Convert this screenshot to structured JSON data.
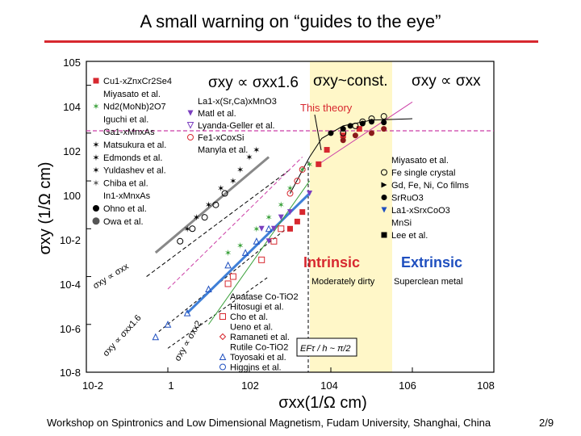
{
  "slide": {
    "title": "A small warning on “guides to the eye”",
    "footer": "Workshop on Spintronics and Low Dimensional Magnetism, Fudam University, Shanghai, China",
    "page": "2/9"
  },
  "chart_data": {
    "type": "scatter",
    "log_x": true,
    "log_y": true,
    "xlim": [
      0.01,
      100000000
    ],
    "ylim": [
      1e-08,
      100000
    ],
    "x_ticks": [
      "10-2",
      "1",
      "102",
      "104",
      "106",
      "108"
    ],
    "y_ticks": [
      "10-8",
      "10-6",
      "10-4",
      "10-2",
      "100",
      "102",
      "104",
      "105"
    ],
    "xlabel": "σxx(1/Ω cm)",
    "ylabel": "σxy (1/Ω cm)",
    "regimes": {
      "left_header": "σxy ∝ σxx1.6",
      "mid_header": "σxy~const.",
      "right_header": "σxy ∝ σxx",
      "intrinsic": "Intrinsic",
      "extrinsic": "Extrinsic",
      "moderately_dirty": "Moderately dirty",
      "superclean": "Superclean metal",
      "this_theory": "This theory",
      "formula": "EFτ / h ~ π/2",
      "left_line_1": "σxy ∝ σxx",
      "left_line_2": "σxy ∝ σxx1.6",
      "left_line_3": "σxy ∝ σxx2"
    },
    "legend_left": [
      {
        "label": "Cu1-xZnxCr2Se4",
        "color": "#d7282f",
        "marker": "square"
      },
      {
        "label": "Miyasato et al.",
        "color": "#000000",
        "marker": "none"
      },
      {
        "label": "Nd2(MoNb)2O7",
        "color": "#39a039",
        "marker": "star"
      },
      {
        "label": "Iguchi et al.",
        "color": "#000000",
        "marker": "none"
      },
      {
        "label": "Ga1-xMnxAs",
        "color": "#000000",
        "marker": "none"
      },
      {
        "label": "Matsukura et al.",
        "color": "#000000",
        "marker": "star"
      },
      {
        "label": "Edmonds et al.",
        "color": "#000000",
        "marker": "star"
      },
      {
        "label": "Yuldashev et al.",
        "color": "#000000",
        "marker": "star"
      },
      {
        "label": "Chiba et al.",
        "color": "#555555",
        "marker": "star"
      },
      {
        "label": "In1-xMnxAs",
        "color": "#000000",
        "marker": "none"
      },
      {
        "label": "Ohno et al.",
        "color": "#000000",
        "marker": "circle"
      },
      {
        "label": "Owa et al.",
        "color": "#555555",
        "marker": "hexagon"
      }
    ],
    "legend_mid": [
      {
        "label": "La1-x(Sr,Ca)xMnO3",
        "color": "#7b3fbf",
        "marker": "none"
      },
      {
        "label": "Matl et al.",
        "color": "#7b3fbf",
        "marker": "triangle-down"
      },
      {
        "label": "Lyanda-Geller et al.",
        "color": "#7b3fbf",
        "marker": "triangle-down-open"
      },
      {
        "label": "Fe1-xCoxSi",
        "color": "#d7282f",
        "marker": "circle-open"
      },
      {
        "label": "Manyla et al.",
        "color": "#000000",
        "marker": "none"
      }
    ],
    "legend_right": [
      {
        "label": "Miyasato et al.",
        "color": "#000000",
        "marker": "none"
      },
      {
        "label": "Fe single crystal",
        "color": "#000000",
        "marker": "circle-open"
      },
      {
        "label": "Gd, Fe, Ni, Co films",
        "color": "#000000",
        "marker": "triangle-right"
      },
      {
        "label": "SrRuO3",
        "color": "#000000",
        "marker": "dot"
      },
      {
        "label": "La1-xSrxCoO3",
        "color": "#1f4fbf",
        "marker": "triangle-down"
      },
      {
        "label": "MnSi",
        "color": "#000000",
        "marker": "none"
      },
      {
        "label": "Lee et al.",
        "color": "#000000",
        "marker": "square"
      }
    ],
    "legend_bottom": [
      {
        "label": "Anatase Co-TiO2",
        "color": "#000000",
        "marker": "none"
      },
      {
        "label": "Hitosugi et al.",
        "color": "#000000",
        "marker": "none"
      },
      {
        "label": "Cho et al.",
        "color": "#d7282f",
        "marker": "square-open"
      },
      {
        "label": "Ueno et al.",
        "color": "#000000",
        "marker": "none"
      },
      {
        "label": "Ramaneti et al.",
        "color": "#d7282f",
        "marker": "diamond-open"
      },
      {
        "label": "Rutile Co-TiO2",
        "color": "#1f4fbf",
        "marker": "none"
      },
      {
        "label": "Toyosaki et al.",
        "color": "#1f4fbf",
        "marker": "triangle-open"
      },
      {
        "label": "Higgins et al.",
        "color": "#1f4fbf",
        "marker": "circle-open"
      }
    ],
    "series": [
      {
        "name": "Cu1-xZnxCr2Se4",
        "color": "#d7282f",
        "marker": "square",
        "points": [
          [
            1000,
            0.01
          ],
          [
            1500,
            0.02
          ],
          [
            2000,
            0.05
          ],
          [
            5000,
            5
          ],
          [
            8000,
            20
          ],
          [
            20000,
            80
          ],
          [
            50000,
            150
          ]
        ]
      },
      {
        "name": "Nd2(MoNb)2O7",
        "color": "#39a039",
        "marker": "star",
        "points": [
          [
            30,
            0.001
          ],
          [
            60,
            0.002
          ],
          [
            150,
            0.01
          ],
          [
            300,
            0.03
          ],
          [
            600,
            0.1
          ],
          [
            1000,
            0.5
          ],
          [
            2000,
            3
          ],
          [
            3000,
            5
          ]
        ]
      },
      {
        "name": "Ga1-xMnxAs",
        "color": "#000000",
        "marker": "star",
        "points": [
          [
            3,
            0.01
          ],
          [
            5,
            0.03
          ],
          [
            10,
            0.1
          ],
          [
            20,
            0.5
          ],
          [
            40,
            1
          ],
          [
            60,
            3
          ],
          [
            100,
            10
          ],
          [
            150,
            20
          ]
        ]
      },
      {
        "name": "In1-xMnxAs",
        "color": "#000000",
        "marker": "circle-open",
        "points": [
          [
            2,
            0.003
          ],
          [
            4,
            0.01
          ],
          [
            8,
            0.03
          ],
          [
            15,
            0.1
          ],
          [
            25,
            0.3
          ]
        ]
      },
      {
        "name": "La1-x(Sr,Ca)xMnO3",
        "color": "#7b3fbf",
        "marker": "triangle-down",
        "points": [
          [
            200,
            0.01
          ],
          [
            300,
            0.003
          ],
          [
            400,
            0.01
          ],
          [
            600,
            0.03
          ],
          [
            1000,
            0.05
          ],
          [
            3000,
            0.3
          ]
        ]
      },
      {
        "name": "Fe1-xCoxSi",
        "color": "#d7282f",
        "marker": "circle-open",
        "points": [
          [
            1000,
            0.3
          ],
          [
            1500,
            1
          ],
          [
            2000,
            3
          ]
        ]
      },
      {
        "name": "Fe single crystal",
        "color": "#000000",
        "marker": "circle-open",
        "points": [
          [
            20000,
            100
          ],
          [
            40000,
            200
          ],
          [
            60000,
            300
          ],
          [
            100000,
            400
          ],
          [
            200000,
            500
          ]
        ]
      },
      {
        "name": "SrRuO3",
        "color": "#000000",
        "marker": "dot",
        "points": [
          [
            10000,
            100
          ],
          [
            20000,
            150
          ],
          [
            30000,
            200
          ],
          [
            60000,
            250
          ],
          [
            100000,
            300
          ],
          [
            200000,
            280
          ]
        ]
      },
      {
        "name": "MnSi",
        "color": "#8b1a1a",
        "marker": "dot",
        "points": [
          [
            20000,
            50
          ],
          [
            40000,
            80
          ],
          [
            100000,
            100
          ],
          [
            200000,
            150
          ]
        ]
      },
      {
        "name": "Anatase Co-TiO2",
        "color": "#d7282f",
        "marker": "square-open",
        "points": [
          [
            40,
            0.0001
          ],
          [
            30,
            5e-05
          ],
          [
            200,
            0.0005
          ],
          [
            400,
            0.003
          ],
          [
            600,
            0.01
          ]
        ]
      },
      {
        "name": "Rutile Co-TiO2",
        "color": "#1f4fbf",
        "marker": "triangle-open",
        "points": [
          [
            0.5,
            3e-07
          ],
          [
            1,
            1e-06
          ],
          [
            3,
            3e-06
          ],
          [
            10,
            3e-05
          ],
          [
            30,
            0.0003
          ],
          [
            80,
            0.001
          ],
          [
            150,
            0.003
          ],
          [
            300,
            0.01
          ]
        ]
      }
    ]
  }
}
